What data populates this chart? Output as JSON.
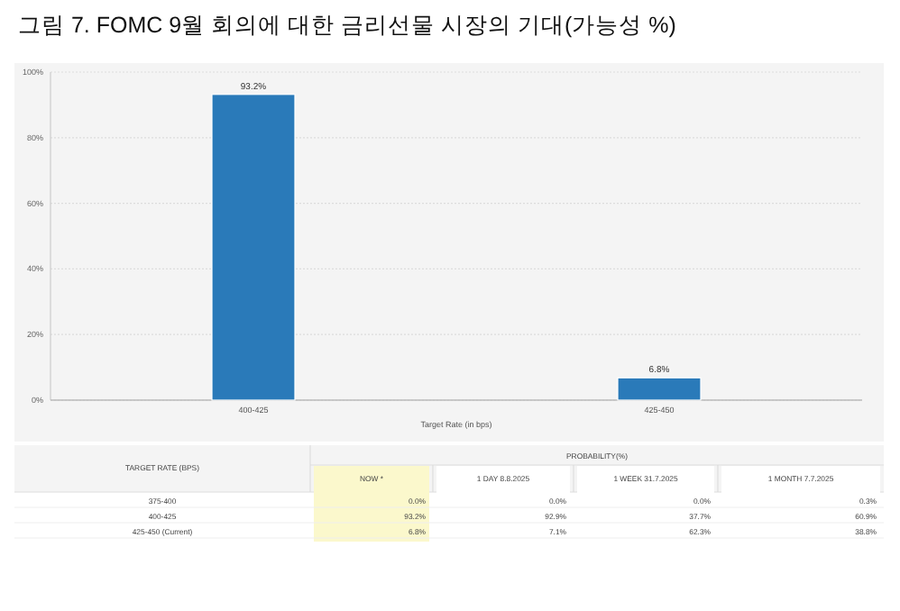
{
  "chart_data": [
    {
      "type": "bar",
      "title": "그림 7. FOMC 9월 회의에 대한 금리선물 시장의 기대(가능성 %)",
      "categories": [
        "400-425",
        "425-450"
      ],
      "values": [
        93.2,
        6.8
      ],
      "value_labels": [
        "93.2%",
        "6.8%"
      ],
      "color": "#2a7ab9",
      "xlabel": "Target Rate (in bps)",
      "ylim": [
        0,
        100
      ],
      "yticks": [
        {
          "value": 0,
          "label": "0%"
        },
        {
          "value": 20,
          "label": "20%"
        },
        {
          "value": 40,
          "label": "40%"
        },
        {
          "value": 60,
          "label": "60%"
        },
        {
          "value": 80,
          "label": "80%"
        },
        {
          "value": 100,
          "label": "100%"
        }
      ],
      "grid": "y"
    },
    {
      "type": "other",
      "ylabel": "TARGET RATE (BPS)",
      "xlabel": "PROBABILITY(%)",
      "categories": [
        "NOW *",
        "1 DAY 8.8.2025",
        "1 WEEK 31.7.2025",
        "1 MONTH 7.7.2025"
      ],
      "y_categories": [
        "375-400",
        "400-425",
        "425-450 (Current)"
      ],
      "cell_labels": [
        [
          "0.0%",
          "0.0%",
          "0.0%",
          "0.3%"
        ],
        [
          "93.2%",
          "92.9%",
          "37.7%",
          "60.9%"
        ],
        [
          "6.8%",
          "7.1%",
          "62.3%",
          "38.8%"
        ]
      ],
      "colors": [
        "#fbf8cc",
        "#ffffff",
        "#ffffff",
        "#ffffff"
      ]
    }
  ]
}
